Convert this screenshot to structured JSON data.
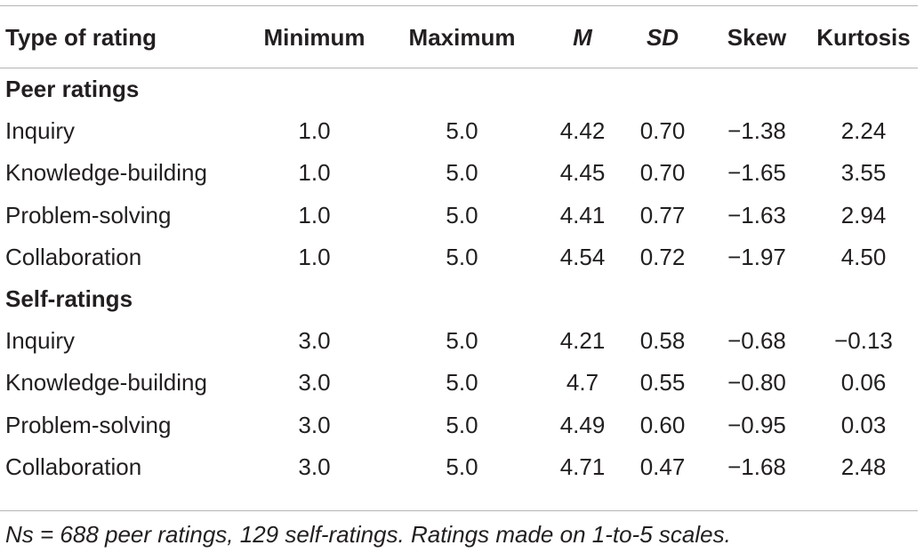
{
  "table": {
    "headers": [
      "Type of rating",
      "Minimum",
      "Maximum",
      "M",
      "SD",
      "Skew",
      "Kurtosis"
    ],
    "sections": [
      {
        "title": "Peer ratings",
        "rows": [
          [
            "Inquiry",
            "1.0",
            "5.0",
            "4.42",
            "0.70",
            "−1.38",
            "2.24"
          ],
          [
            "Knowledge-building",
            "1.0",
            "5.0",
            "4.45",
            "0.70",
            "−1.65",
            "3.55"
          ],
          [
            "Problem-solving",
            "1.0",
            "5.0",
            "4.41",
            "0.77",
            "−1.63",
            "2.94"
          ],
          [
            "Collaboration",
            "1.0",
            "5.0",
            "4.54",
            "0.72",
            "−1.97",
            "4.50"
          ]
        ]
      },
      {
        "title": "Self-ratings",
        "rows": [
          [
            "Inquiry",
            "3.0",
            "5.0",
            "4.21",
            "0.58",
            "−0.68",
            "−0.13"
          ],
          [
            "Knowledge-building",
            "3.0",
            "5.0",
            "4.7",
            "0.55",
            "−0.80",
            "0.06"
          ],
          [
            "Problem-solving",
            "3.0",
            "5.0",
            "4.49",
            "0.60",
            "−0.95",
            "0.03"
          ],
          [
            "Collaboration",
            "3.0",
            "5.0",
            "4.71",
            "0.47",
            "−1.68",
            "2.48"
          ]
        ]
      }
    ],
    "note": "Ns = 688 peer ratings, 129 self-ratings. Ratings made on 1-to-5 scales."
  }
}
